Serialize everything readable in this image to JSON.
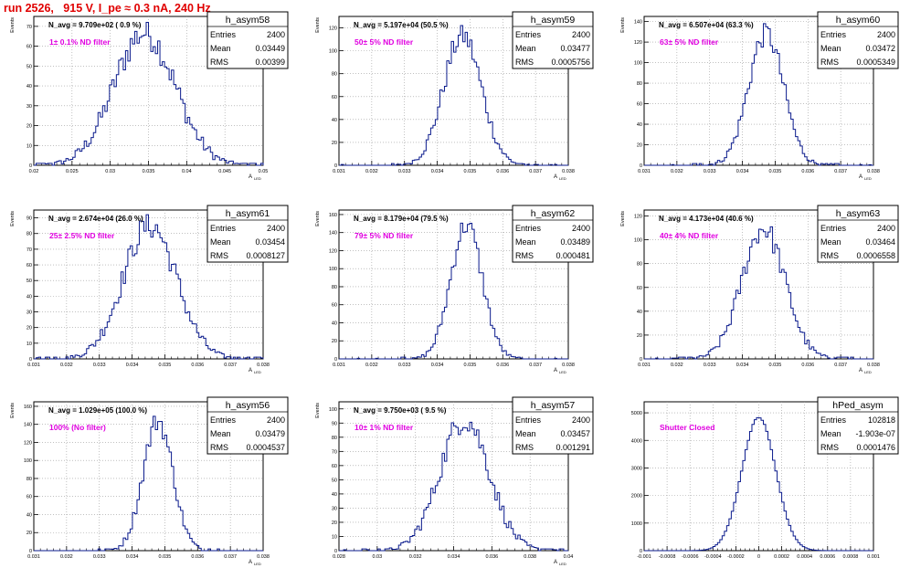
{
  "page_title": "run 2526,   915 V, I_pe ≈ 0.3 nA, 240 Hz",
  "colors": {
    "hist": "#0a1a8c",
    "filter_label": "#e000e0",
    "title": "#e00000",
    "grid": "#9a9a9a"
  },
  "chart_data": [
    {
      "type": "histogram",
      "name": "h_asym58",
      "header": "N_avg = 9.709e+02 ( 0.9 %)",
      "filter": "1± 0.1% ND filter",
      "stats": {
        "entries": "2400",
        "mean": "0.03449",
        "rms": "0.00399"
      },
      "ylabel": "Events",
      "xlabel": "A",
      "xsub": "LED",
      "xlim": [
        0.02,
        0.05
      ],
      "ylim": [
        0,
        75
      ],
      "xticks": [
        "0.02",
        "0.025",
        "0.03",
        "0.035",
        "0.04",
        "0.045",
        "0.05"
      ],
      "yticks": [
        0,
        10,
        20,
        30,
        40,
        50,
        60,
        70
      ],
      "mean": 0.03449,
      "sigma": 0.00399,
      "peak": 72
    },
    {
      "type": "histogram",
      "name": "h_asym59",
      "header": "N_avg = 5.197e+04 (50.5 %)",
      "filter": "50± 5% ND filter",
      "stats": {
        "entries": "2400",
        "mean": "0.03477",
        "rms": "0.0005756"
      },
      "ylabel": "Events",
      "xlabel": "A",
      "xsub": "LED",
      "xlim": [
        0.031,
        0.038
      ],
      "ylim": [
        0,
        130
      ],
      "xticks": [
        "0.031",
        "0.032",
        "0.033",
        "0.034",
        "0.035",
        "0.036",
        "0.037",
        "0.038"
      ],
      "yticks": [
        0,
        20,
        40,
        60,
        80,
        100,
        120
      ],
      "mean": 0.03477,
      "sigma": 0.0005756,
      "peak": 122
    },
    {
      "type": "histogram",
      "name": "h_asym60",
      "header": "N_avg = 6.507e+04 (63.3 %)",
      "filter": "63± 5% ND filter",
      "stats": {
        "entries": "2400",
        "mean": "0.03472",
        "rms": "0.0005349"
      },
      "ylabel": "Events",
      "xlabel": "A",
      "xsub": "LED",
      "xlim": [
        0.031,
        0.038
      ],
      "ylim": [
        0,
        145
      ],
      "xticks": [
        "0.031",
        "0.032",
        "0.033",
        "0.034",
        "0.035",
        "0.036",
        "0.037",
        "0.038"
      ],
      "yticks": [
        0,
        20,
        40,
        60,
        80,
        100,
        120,
        140
      ],
      "mean": 0.03472,
      "sigma": 0.0005349,
      "peak": 138
    },
    {
      "type": "histogram",
      "name": "h_asym61",
      "header": "N_avg = 2.674e+04 (26.0 %)",
      "filter": "25± 2.5% ND filter",
      "stats": {
        "entries": "2400",
        "mean": "0.03454",
        "rms": "0.0008127"
      },
      "ylabel": "Events",
      "xlabel": "A",
      "xsub": "LED",
      "xlim": [
        0.031,
        0.038
      ],
      "ylim": [
        0,
        95
      ],
      "xticks": [
        "0.031",
        "0.032",
        "0.033",
        "0.034",
        "0.035",
        "0.036",
        "0.037",
        "0.038"
      ],
      "yticks": [
        0,
        10,
        20,
        30,
        40,
        50,
        60,
        70,
        80,
        90
      ],
      "mean": 0.03454,
      "sigma": 0.0008127,
      "peak": 92
    },
    {
      "type": "histogram",
      "name": "h_asym62",
      "header": "N_avg = 8.179e+04 (79.5 %)",
      "filter": "79± 5% ND filter",
      "stats": {
        "entries": "2400",
        "mean": "0.03489",
        "rms": "0.000481"
      },
      "ylabel": "Events",
      "xlabel": "A",
      "xsub": "LED",
      "xlim": [
        0.031,
        0.038
      ],
      "ylim": [
        0,
        165
      ],
      "xticks": [
        "0.031",
        "0.032",
        "0.033",
        "0.034",
        "0.035",
        "0.036",
        "0.037",
        "0.038"
      ],
      "yticks": [
        0,
        20,
        40,
        60,
        80,
        100,
        120,
        140,
        160
      ],
      "mean": 0.03489,
      "sigma": 0.000481,
      "peak": 160
    },
    {
      "type": "histogram",
      "name": "h_asym63",
      "header": "N_avg = 4.173e+04 (40.6 %)",
      "filter": "40± 4% ND filter",
      "stats": {
        "entries": "2400",
        "mean": "0.03464",
        "rms": "0.0006558"
      },
      "ylabel": "Events",
      "xlabel": "A",
      "xsub": "LED",
      "xlim": [
        0.031,
        0.038
      ],
      "ylim": [
        0,
        125
      ],
      "xticks": [
        "0.031",
        "0.032",
        "0.033",
        "0.034",
        "0.035",
        "0.036",
        "0.037",
        "0.038"
      ],
      "yticks": [
        0,
        20,
        40,
        60,
        80,
        100,
        120
      ],
      "mean": 0.03464,
      "sigma": 0.0006558,
      "peak": 118
    },
    {
      "type": "histogram",
      "name": "h_asym56",
      "header": "N_avg = 1.029e+05 (100.0 %)",
      "filter": "100% (No filter)",
      "stats": {
        "entries": "2400",
        "mean": "0.03479",
        "rms": "0.0004537"
      },
      "ylabel": "Events",
      "xlabel": "A",
      "xsub": "LED",
      "xlim": [
        0.031,
        0.038
      ],
      "ylim": [
        0,
        165
      ],
      "xticks": [
        "0.031",
        "0.032",
        "0.033",
        "0.034",
        "0.035",
        "0.036",
        "0.037",
        "0.038"
      ],
      "yticks": [
        0,
        20,
        40,
        60,
        80,
        100,
        120,
        140,
        160
      ],
      "mean": 0.03479,
      "sigma": 0.0004537,
      "peak": 155
    },
    {
      "type": "histogram",
      "name": "h_asym57",
      "header": "N_avg = 9.750e+03 ( 9.5 %)",
      "filter": "10± 1% ND filter",
      "stats": {
        "entries": "2400",
        "mean": "0.03457",
        "rms": "0.001291"
      },
      "ylabel": "Events",
      "xlabel": "A",
      "xsub": "LED",
      "xlim": [
        0.028,
        0.04
      ],
      "ylim": [
        0,
        105
      ],
      "xticks": [
        "0.028",
        "0.03",
        "0.032",
        "0.034",
        "0.036",
        "0.038",
        "0.04"
      ],
      "yticks": [
        0,
        10,
        20,
        30,
        40,
        50,
        60,
        70,
        80,
        90,
        100
      ],
      "mean": 0.03457,
      "sigma": 0.001291,
      "peak": 100
    },
    {
      "type": "histogram",
      "name": "hPed_asym",
      "header": "",
      "filter": "Shutter Closed",
      "stats": {
        "entries": "102818",
        "mean": "-1.903e-07",
        "rms": "0.0001476"
      },
      "ylabel": "",
      "xlabel": "",
      "xsub": "",
      "xlim": [
        -0.001,
        0.001
      ],
      "ylim": [
        0,
        5400
      ],
      "xticks": [
        "-0.001",
        "-0.0008",
        "-0.0006",
        "-0.0004",
        "-0.0002",
        "0",
        "0.0002",
        "0.0004",
        "0.0006",
        "0.0008",
        "0.001"
      ],
      "yticks": [
        0,
        1000,
        2000,
        3000,
        4000,
        5000
      ],
      "mean": 0,
      "sigma": 0.0001476,
      "peak": 5200
    }
  ]
}
